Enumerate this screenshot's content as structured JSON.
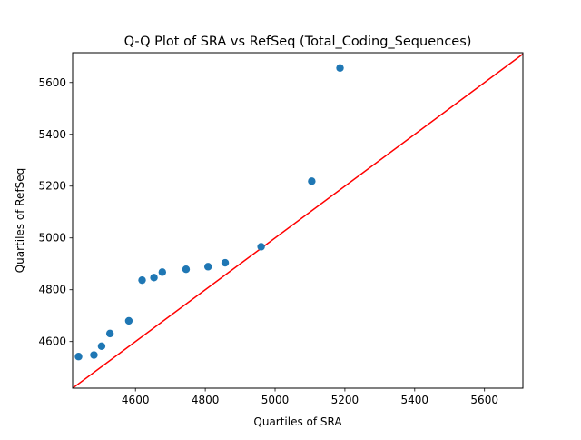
{
  "chart_data": {
    "type": "scatter",
    "title": "Q-Q Plot of SRA vs RefSeq (Total_Coding_Sequences)",
    "xlabel": "Quartiles of SRA",
    "ylabel": "Quartiles of RefSeq",
    "xlim": [
      4420,
      5710
    ],
    "ylim": [
      4420,
      5715
    ],
    "xticks": [
      4600,
      4800,
      5000,
      5200,
      5400,
      5600
    ],
    "yticks": [
      4600,
      4800,
      5000,
      5200,
      5400,
      5600
    ],
    "grid": false,
    "points": [
      {
        "x": 4437,
        "y": 4542
      },
      {
        "x": 4481,
        "y": 4548
      },
      {
        "x": 4503,
        "y": 4582
      },
      {
        "x": 4527,
        "y": 4631
      },
      {
        "x": 4581,
        "y": 4680
      },
      {
        "x": 4619,
        "y": 4837
      },
      {
        "x": 4653,
        "y": 4847
      },
      {
        "x": 4677,
        "y": 4868
      },
      {
        "x": 4745,
        "y": 4879
      },
      {
        "x": 4808,
        "y": 4889
      },
      {
        "x": 4857,
        "y": 4904
      },
      {
        "x": 4960,
        "y": 4966
      },
      {
        "x": 5105,
        "y": 5219
      },
      {
        "x": 5186,
        "y": 5656
      }
    ],
    "reference_line": {
      "type": "y=x"
    },
    "colors": {
      "points": "#1f77b4",
      "reference_line": "#ff0000",
      "axes": "#000000"
    }
  }
}
